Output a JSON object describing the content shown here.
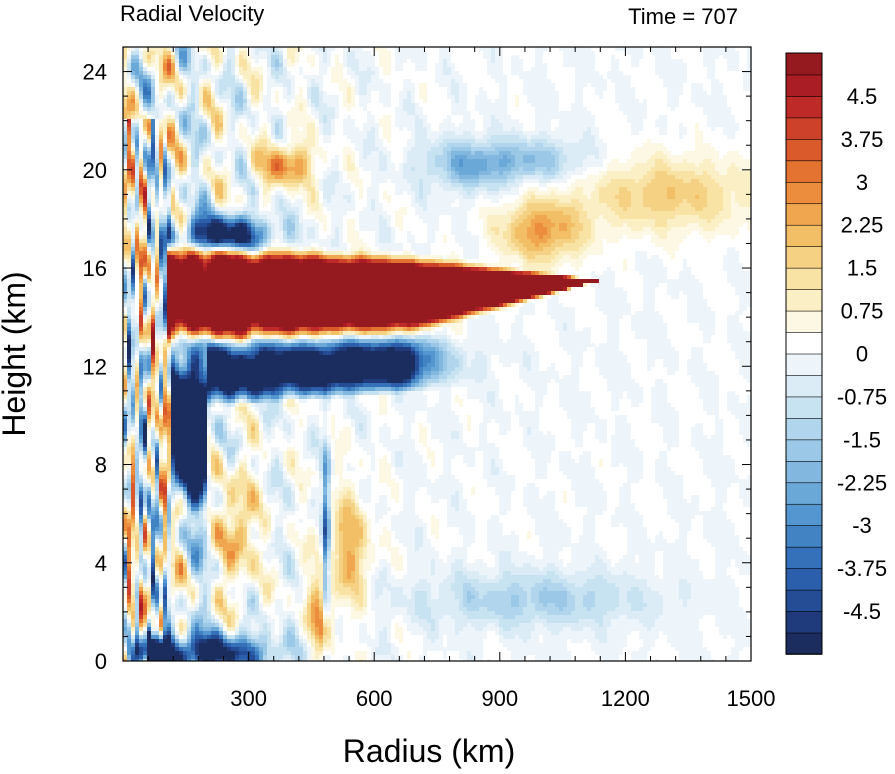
{
  "chart_data": {
    "type": "heatmap",
    "title": "Radial Velocity",
    "subtitle": "Time = 707",
    "xlabel": "Radius (km)",
    "ylabel": "Height (km)",
    "xlim": [
      0,
      1500
    ],
    "ylim": [
      0,
      25
    ],
    "x_ticks": [
      300,
      600,
      900,
      1200,
      1500
    ],
    "y_ticks": [
      0,
      4,
      8,
      12,
      16,
      20,
      24
    ],
    "grid": false,
    "colorbar": {
      "range": [
        -5.25,
        5.25
      ],
      "step": 0.375,
      "labels": [
        "4.5",
        "3.75",
        "3",
        "2.25",
        "1.5",
        "0.75",
        "0",
        "-0.75",
        "-1.5",
        "-2.25",
        "-3",
        "-3.75",
        "-4.5"
      ],
      "label_values": [
        4.5,
        3.75,
        3,
        2.25,
        1.5,
        0.75,
        0,
        -0.75,
        -1.5,
        -2.25,
        -3,
        -3.75,
        -4.5
      ],
      "colors": [
        "#1b2c5e",
        "#203b7c",
        "#254d96",
        "#2b5fac",
        "#3571b9",
        "#4283c4",
        "#5496cf",
        "#6aa8d8",
        "#82b8df",
        "#9ac8e6",
        "#b1d5ec",
        "#c7e2f1",
        "#dcecf6",
        "#edf5fa",
        "#ffffff",
        "#fdf8e4",
        "#fbefc6",
        "#f8e2a4",
        "#f5d283",
        "#f2be66",
        "#efa64f",
        "#eb8d3d",
        "#e47331",
        "#da5a2c",
        "#cd4029",
        "#bd2a27",
        "#aa1d24",
        "#951a1f"
      ]
    },
    "features": [
      {
        "name": "upper-level outflow jet",
        "r_range": [
          110,
          1050
        ],
        "z_range": [
          13.2,
          16.8
        ],
        "peak_value": 5.25
      },
      {
        "name": "inflow below outflow",
        "r_range": [
          110,
          680
        ],
        "z_range": [
          10.3,
          13.2
        ],
        "peak_value": -5.25
      },
      {
        "name": "negative layer above outflow",
        "r_range": [
          120,
          360
        ],
        "z_range": [
          16.8,
          18.2
        ],
        "peak_value": -4.5
      },
      {
        "name": "boundary layer inflow",
        "r_range": [
          50,
          330
        ],
        "z_range": [
          0,
          0.8
        ],
        "peak_value": -5.25
      },
      {
        "name": "upper outflow cell",
        "r_range": [
          330,
          450
        ],
        "z_range": [
          19.5,
          21.0
        ],
        "peak_value": 2.5
      },
      {
        "name": "secondary outflow",
        "r_range": [
          900,
          1150
        ],
        "z_range": [
          16.5,
          18.5
        ],
        "peak_value": 2.5
      },
      {
        "name": "mid-level positive",
        "r_range": [
          240,
          320
        ],
        "z_range": [
          3.5,
          7.0
        ],
        "peak_value": 2.25
      },
      {
        "name": "lower positive near r 480",
        "r_range": [
          440,
          500
        ],
        "z_range": [
          0.5,
          3.0
        ],
        "peak_value": 3.0
      }
    ]
  }
}
